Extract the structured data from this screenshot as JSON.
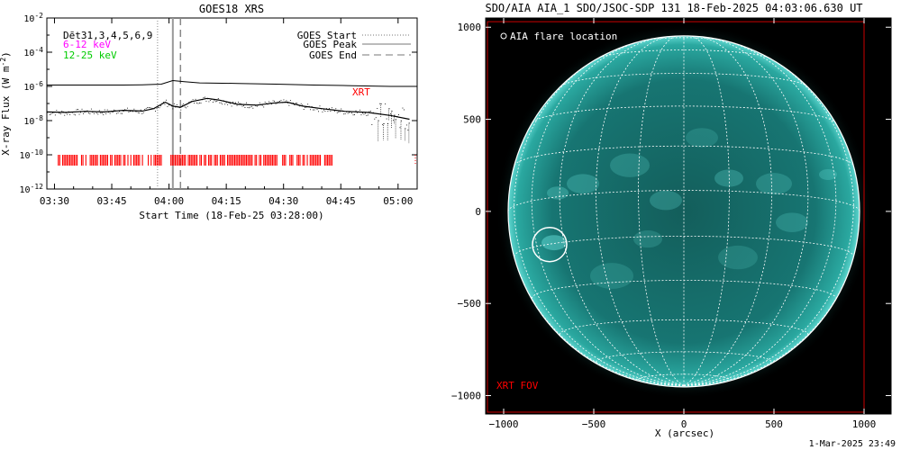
{
  "left": {
    "title": "GOES18 XRS",
    "ylabel": "X-ray Flux (W m",
    "ylabel_sup": "-2",
    "ylabel_close": ")",
    "xlabel": "Start Time (18-Feb-25 03:28:00)",
    "channels_label": "Dēt31,3,4,5,6,9",
    "band1": "6-12 keV",
    "band2": "12-25 keV",
    "legend": {
      "start": "GOES Start",
      "peak": "GOES Peak",
      "end": "GOES End"
    },
    "xrt_label": "XRT",
    "colors": {
      "band1": "#ff00ff",
      "band2": "#00cc00",
      "xrt": "#ff0000"
    }
  },
  "right": {
    "title": "SDO/AIA AIA_1 SDO/JSOC-SDP 131 18-Feb-2025 04:03:06.630 UT",
    "xlabel": "X (arcsec)",
    "legend": "AIA flare location",
    "fov_label": "XRT FOV",
    "colors": {
      "disk": "#1c8a86",
      "fov": "#cc0000"
    }
  },
  "footer": "1-Mar-2025 23:49",
  "chart_data": [
    {
      "type": "line",
      "title": "GOES18 XRS",
      "xlabel": "Start Time (18-Feb-25 03:28:00)",
      "ylabel": "X-ray Flux (W m-2)",
      "x_ticks": [
        "03:30",
        "03:45",
        "04:00",
        "04:15",
        "04:30",
        "04:45",
        "05:00"
      ],
      "x_tick_minutes": [
        2,
        17,
        32,
        47,
        62,
        77,
        92
      ],
      "xlim_minutes": [
        0,
        97
      ],
      "y_scale": "log",
      "y_ticks": [
        "10^-2",
        "10^-4",
        "10^-6",
        "10^-8",
        "10^-10",
        "10^-12"
      ],
      "ylim": [
        1e-12,
        0.01
      ],
      "series": [
        {
          "x_minutes": [
            0,
            10,
            20,
            25,
            30,
            33,
            36,
            40,
            50,
            60,
            70,
            80,
            90,
            97
          ],
          "values": [
            1.2e-06,
            1.2e-06,
            1.2e-06,
            1.25e-06,
            1.35e-06,
            2.2e-06,
            1.9e-06,
            1.6e-06,
            1.5e-06,
            1.35e-06,
            1.2e-06,
            1.1e-06,
            1e-06,
            1e-06
          ]
        },
        {
          "x_minutes": [
            0,
            5,
            10,
            15,
            20,
            25,
            28,
            31,
            33,
            35,
            38,
            42,
            45,
            50,
            55,
            60,
            63,
            67,
            72,
            78,
            84,
            90,
            95
          ],
          "values": [
            3.2e-08,
            3e-08,
            3.5e-08,
            3.2e-08,
            4e-08,
            3.6e-08,
            5e-08,
            1.2e-07,
            7e-08,
            6e-08,
            1.3e-07,
            2e-07,
            1.6e-07,
            9e-08,
            8e-08,
            1.1e-07,
            1.2e-07,
            7e-08,
            5e-08,
            3.5e-08,
            3e-08,
            2e-08,
            1.2e-08
          ]
        }
      ],
      "markers": {
        "goes_start_minutes": 29,
        "goes_peak_minutes": 33,
        "goes_end_minutes": 35
      },
      "xrt_coverage_minutes": [
        [
          3,
          30
        ],
        [
          32.5,
          75
        ]
      ]
    },
    {
      "type": "scatter",
      "title": "SDO/AIA AIA_1 SDO/JSOC-SDP 131 18-Feb-2025 04:03:06.630 UT",
      "xlabel": "X (arcsec)",
      "x_ticks": [
        -1000,
        -500,
        0,
        500,
        1000
      ],
      "y_ticks": [
        1000,
        500,
        0,
        -500,
        -1000
      ],
      "xlim": [
        -1100,
        1150
      ],
      "ylim": [
        -1100,
        1050
      ],
      "solar_radius_arcsec": 975,
      "flare_location": {
        "x": -745,
        "y": -180,
        "radius": 95
      },
      "xrt_fov": {
        "x": [
          -1090,
          1000
        ],
        "y": [
          -1090,
          1030
        ]
      }
    }
  ]
}
